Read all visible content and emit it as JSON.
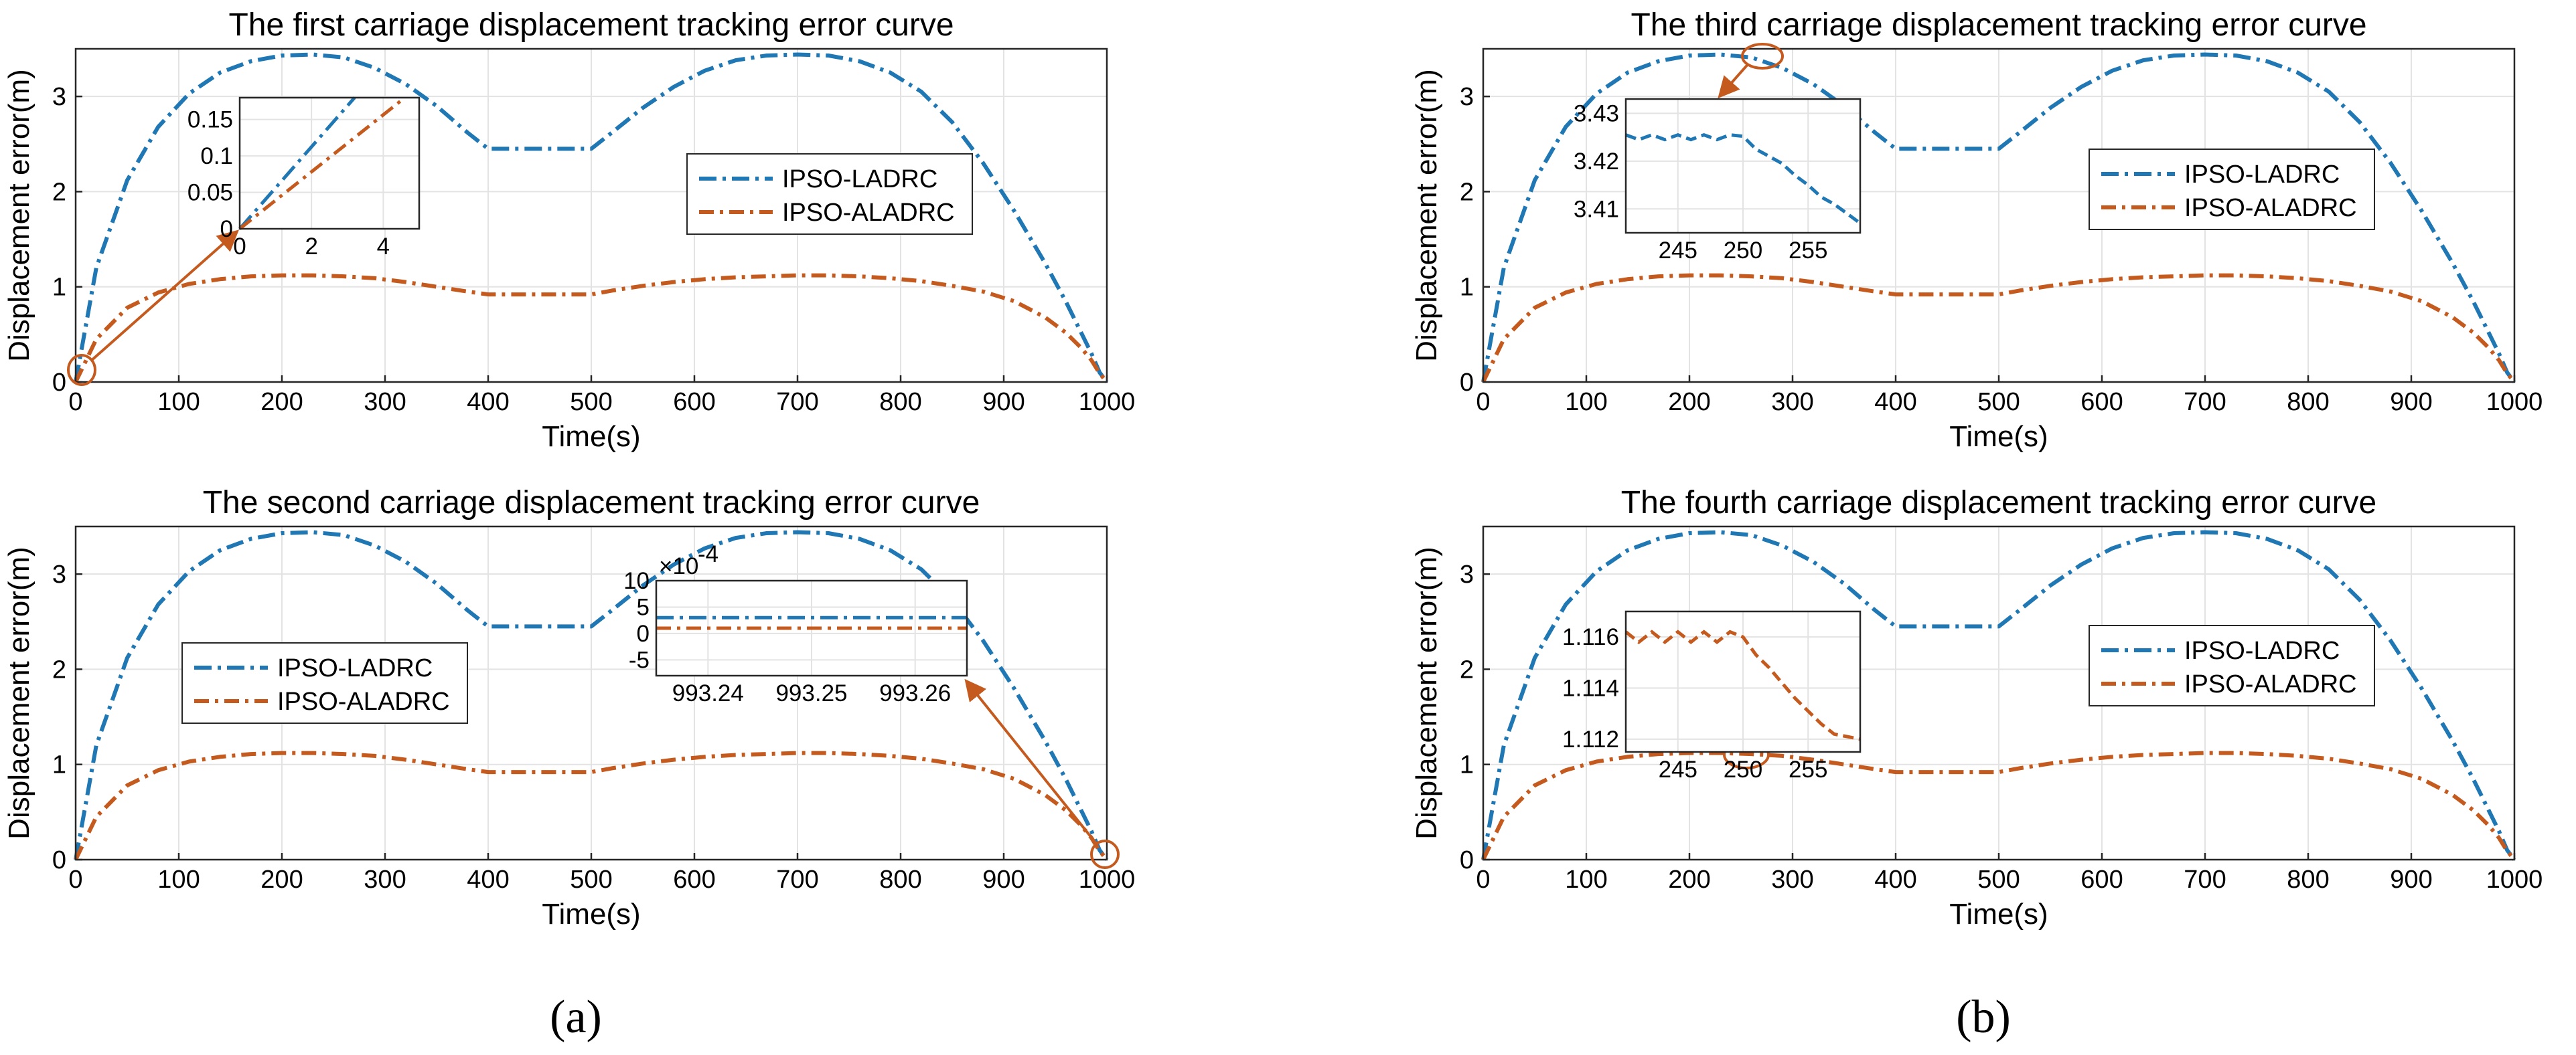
{
  "colors": {
    "ladrc": "#1f77b4",
    "aladrc": "#c55a1e",
    "annot": "#c55a1e"
  },
  "panel_labels": [
    "(a)",
    "(b)"
  ],
  "chart_data": [
    {
      "type": "line",
      "title": "The first carriage displacement tracking error curve",
      "xlabel": "Time(s)",
      "ylabel": "Displacement error(m)",
      "xlim": [
        0,
        1000
      ],
      "ylim": [
        0,
        3.5
      ],
      "xticks": [
        0,
        100,
        200,
        300,
        400,
        500,
        600,
        700,
        800,
        900,
        1000
      ],
      "yticks": [
        0,
        1,
        2,
        3
      ],
      "grid": true,
      "legend_position": "center-right",
      "series": [
        {
          "name": "IPSO-LADRC",
          "x": [
            0,
            20,
            50,
            80,
            110,
            140,
            170,
            200,
            230,
            260,
            290,
            320,
            350,
            380,
            400,
            500,
            520,
            550,
            580,
            610,
            640,
            670,
            700,
            730,
            760,
            790,
            820,
            850,
            880,
            910,
            940,
            960,
            975,
            985,
            993,
            1000
          ],
          "values": [
            0,
            1.2,
            2.12,
            2.68,
            3.03,
            3.25,
            3.37,
            3.43,
            3.44,
            3.41,
            3.3,
            3.13,
            2.9,
            2.62,
            2.45,
            2.45,
            2.62,
            2.88,
            3.1,
            3.27,
            3.38,
            3.43,
            3.44,
            3.43,
            3.37,
            3.25,
            3.05,
            2.73,
            2.3,
            1.8,
            1.25,
            0.85,
            0.52,
            0.3,
            0.1,
            0
          ]
        },
        {
          "name": "IPSO-ALADRC",
          "x": [
            0,
            20,
            50,
            80,
            110,
            140,
            170,
            200,
            230,
            260,
            290,
            320,
            350,
            380,
            400,
            500,
            520,
            550,
            580,
            610,
            640,
            670,
            700,
            730,
            760,
            790,
            820,
            850,
            880,
            910,
            940,
            960,
            975,
            985,
            993,
            1000
          ],
          "values": [
            0,
            0.45,
            0.78,
            0.94,
            1.03,
            1.08,
            1.11,
            1.12,
            1.12,
            1.11,
            1.09,
            1.05,
            1.0,
            0.95,
            0.92,
            0.92,
            0.96,
            1.01,
            1.05,
            1.08,
            1.1,
            1.11,
            1.12,
            1.12,
            1.11,
            1.09,
            1.06,
            1.01,
            0.95,
            0.85,
            0.68,
            0.52,
            0.36,
            0.23,
            0.09,
            0
          ]
        }
      ],
      "inset": {
        "xlim": [
          0,
          5
        ],
        "ylim": [
          0,
          0.18
        ],
        "xticks": [
          0,
          2,
          4
        ],
        "yticks": [
          0,
          0.05,
          0.1,
          0.15
        ],
        "series": [
          {
            "name": "IPSO-LADRC",
            "x": [
              0,
              3.2
            ],
            "values": [
              0,
              0.18
            ]
          },
          {
            "name": "IPSO-ALADRC",
            "x": [
              0,
              4.6
            ],
            "values": [
              0,
              0.18
            ]
          }
        ]
      }
    },
    {
      "type": "line",
      "title": "The second carriage displacement tracking error curve",
      "xlabel": "Time(s)",
      "ylabel": "Displacement error(m)",
      "xlim": [
        0,
        1000
      ],
      "ylim": [
        0,
        3.5
      ],
      "xticks": [
        0,
        100,
        200,
        300,
        400,
        500,
        600,
        700,
        800,
        900,
        1000
      ],
      "yticks": [
        0,
        1,
        2,
        3
      ],
      "grid": true,
      "legend_position": "center-left",
      "series": [
        {
          "name": "IPSO-LADRC",
          "x": [
            0,
            20,
            50,
            80,
            110,
            140,
            170,
            200,
            230,
            260,
            290,
            320,
            350,
            380,
            400,
            500,
            520,
            550,
            580,
            610,
            640,
            670,
            700,
            730,
            760,
            790,
            820,
            850,
            880,
            910,
            940,
            960,
            975,
            985,
            993,
            1000
          ],
          "values": [
            0,
            1.2,
            2.12,
            2.68,
            3.03,
            3.25,
            3.37,
            3.43,
            3.44,
            3.41,
            3.3,
            3.13,
            2.9,
            2.62,
            2.45,
            2.45,
            2.62,
            2.88,
            3.1,
            3.27,
            3.38,
            3.43,
            3.44,
            3.43,
            3.37,
            3.25,
            3.05,
            2.73,
            2.3,
            1.8,
            1.25,
            0.85,
            0.52,
            0.3,
            0.1,
            0
          ]
        },
        {
          "name": "IPSO-ALADRC",
          "x": [
            0,
            20,
            50,
            80,
            110,
            140,
            170,
            200,
            230,
            260,
            290,
            320,
            350,
            380,
            400,
            500,
            520,
            550,
            580,
            610,
            640,
            670,
            700,
            730,
            760,
            790,
            820,
            850,
            880,
            910,
            940,
            960,
            975,
            985,
            993,
            1000
          ],
          "values": [
            0,
            0.45,
            0.78,
            0.94,
            1.03,
            1.08,
            1.11,
            1.12,
            1.12,
            1.11,
            1.09,
            1.05,
            1.0,
            0.95,
            0.92,
            0.92,
            0.96,
            1.01,
            1.05,
            1.08,
            1.1,
            1.11,
            1.12,
            1.12,
            1.11,
            1.09,
            1.06,
            1.01,
            0.95,
            0.85,
            0.68,
            0.52,
            0.36,
            0.23,
            0.09,
            0
          ]
        }
      ],
      "inset": {
        "xlim": [
          993.235,
          993.265
        ],
        "ylim": [
          -8,
          10
        ],
        "xticks": [
          993.24,
          993.25,
          993.26
        ],
        "yticks": [
          -5,
          0,
          5,
          10
        ],
        "exponent_label": "×10",
        "exponent_power": "-4",
        "series": [
          {
            "name": "IPSO-LADRC",
            "x": [
              993.235,
              993.265
            ],
            "values": [
              3,
              3
            ]
          },
          {
            "name": "IPSO-ALADRC",
            "x": [
              993.235,
              993.265
            ],
            "values": [
              1,
              1
            ]
          }
        ]
      }
    },
    {
      "type": "line",
      "title": "The third carriage displacement tracking error curve",
      "xlabel": "Time(s)",
      "ylabel": "Displacement error(m)",
      "xlim": [
        0,
        1000
      ],
      "ylim": [
        0,
        3.5
      ],
      "xticks": [
        0,
        100,
        200,
        300,
        400,
        500,
        600,
        700,
        800,
        900,
        1000
      ],
      "yticks": [
        0,
        1,
        2,
        3
      ],
      "grid": true,
      "legend_position": "center-right",
      "series": [
        {
          "name": "IPSO-LADRC",
          "x": [
            0,
            20,
            50,
            80,
            110,
            140,
            170,
            200,
            230,
            260,
            290,
            320,
            350,
            380,
            400,
            500,
            520,
            550,
            580,
            610,
            640,
            670,
            700,
            730,
            760,
            790,
            820,
            850,
            880,
            910,
            940,
            960,
            975,
            985,
            993,
            1000
          ],
          "values": [
            0,
            1.2,
            2.12,
            2.68,
            3.03,
            3.25,
            3.37,
            3.43,
            3.44,
            3.41,
            3.3,
            3.13,
            2.9,
            2.62,
            2.45,
            2.45,
            2.62,
            2.88,
            3.1,
            3.27,
            3.38,
            3.43,
            3.44,
            3.43,
            3.37,
            3.25,
            3.05,
            2.73,
            2.3,
            1.8,
            1.25,
            0.85,
            0.52,
            0.3,
            0.1,
            0
          ]
        },
        {
          "name": "IPSO-ALADRC",
          "x": [
            0,
            20,
            50,
            80,
            110,
            140,
            170,
            200,
            230,
            260,
            290,
            320,
            350,
            380,
            400,
            500,
            520,
            550,
            580,
            610,
            640,
            670,
            700,
            730,
            760,
            790,
            820,
            850,
            880,
            910,
            940,
            960,
            975,
            985,
            993,
            1000
          ],
          "values": [
            0,
            0.45,
            0.78,
            0.94,
            1.03,
            1.08,
            1.11,
            1.12,
            1.12,
            1.11,
            1.09,
            1.05,
            1.0,
            0.95,
            0.92,
            0.92,
            0.96,
            1.01,
            1.05,
            1.08,
            1.1,
            1.11,
            1.12,
            1.12,
            1.11,
            1.09,
            1.06,
            1.01,
            0.95,
            0.85,
            0.68,
            0.52,
            0.36,
            0.23,
            0.09,
            0
          ]
        }
      ],
      "inset": {
        "xlim": [
          241,
          259
        ],
        "ylim": [
          3.405,
          3.433
        ],
        "xticks": [
          245,
          250,
          255
        ],
        "yticks": [
          3.41,
          3.42,
          3.43
        ],
        "series": [
          {
            "name": "IPSO-LADRC",
            "x": [
              241,
              242,
              243,
              244,
              245,
              246,
              247,
              248,
              249,
              250,
              251,
              252,
              253,
              254,
              255,
              256,
              257,
              258,
              259
            ],
            "values": [
              3.4255,
              3.4245,
              3.4255,
              3.4245,
              3.4255,
              3.4245,
              3.4255,
              3.4245,
              3.4255,
              3.4252,
              3.4225,
              3.421,
              3.4195,
              3.417,
              3.415,
              3.4125,
              3.411,
              3.409,
              3.407
            ]
          }
        ]
      }
    },
    {
      "type": "line",
      "title": "The fourth carriage displacement tracking error curve",
      "xlabel": "Time(s)",
      "ylabel": "Displacement error(m)",
      "xlim": [
        0,
        1000
      ],
      "ylim": [
        0,
        3.5
      ],
      "xticks": [
        0,
        100,
        200,
        300,
        400,
        500,
        600,
        700,
        800,
        900,
        1000
      ],
      "yticks": [
        0,
        1,
        2,
        3
      ],
      "grid": true,
      "legend_position": "center-right",
      "series": [
        {
          "name": "IPSO-LADRC",
          "x": [
            0,
            20,
            50,
            80,
            110,
            140,
            170,
            200,
            230,
            260,
            290,
            320,
            350,
            380,
            400,
            500,
            520,
            550,
            580,
            610,
            640,
            670,
            700,
            730,
            760,
            790,
            820,
            850,
            880,
            910,
            940,
            960,
            975,
            985,
            993,
            1000
          ],
          "values": [
            0,
            1.2,
            2.12,
            2.68,
            3.03,
            3.25,
            3.37,
            3.43,
            3.44,
            3.41,
            3.3,
            3.13,
            2.9,
            2.62,
            2.45,
            2.45,
            2.62,
            2.88,
            3.1,
            3.27,
            3.38,
            3.43,
            3.44,
            3.43,
            3.37,
            3.25,
            3.05,
            2.73,
            2.3,
            1.8,
            1.25,
            0.85,
            0.52,
            0.3,
            0.1,
            0
          ]
        },
        {
          "name": "IPSO-ALADRC",
          "x": [
            0,
            20,
            50,
            80,
            110,
            140,
            170,
            200,
            230,
            260,
            290,
            320,
            350,
            380,
            400,
            500,
            520,
            550,
            580,
            610,
            640,
            670,
            700,
            730,
            760,
            790,
            820,
            850,
            880,
            910,
            940,
            960,
            975,
            985,
            993,
            1000
          ],
          "values": [
            0,
            0.45,
            0.78,
            0.94,
            1.03,
            1.08,
            1.11,
            1.12,
            1.12,
            1.11,
            1.09,
            1.05,
            1.0,
            0.95,
            0.92,
            0.92,
            0.96,
            1.01,
            1.05,
            1.08,
            1.1,
            1.11,
            1.12,
            1.12,
            1.11,
            1.09,
            1.06,
            1.01,
            0.95,
            0.85,
            0.68,
            0.52,
            0.36,
            0.23,
            0.09,
            0
          ]
        }
      ],
      "inset": {
        "xlim": [
          241,
          259
        ],
        "ylim": [
          1.1115,
          1.117
        ],
        "xticks": [
          245,
          250,
          255
        ],
        "yticks": [
          1.112,
          1.114,
          1.116
        ],
        "series": [
          {
            "name": "IPSO-ALADRC",
            "x": [
              241,
              242,
              243,
              244,
              245,
              246,
              247,
              248,
              249,
              250,
              251,
              252,
              253,
              254,
              255,
              256,
              257,
              258,
              259
            ],
            "values": [
              1.1162,
              1.1158,
              1.1162,
              1.1158,
              1.1162,
              1.1158,
              1.1162,
              1.1158,
              1.1162,
              1.116,
              1.1153,
              1.1148,
              1.1142,
              1.1136,
              1.1131,
              1.1126,
              1.1122,
              1.1121,
              1.112
            ]
          }
        ]
      }
    }
  ]
}
